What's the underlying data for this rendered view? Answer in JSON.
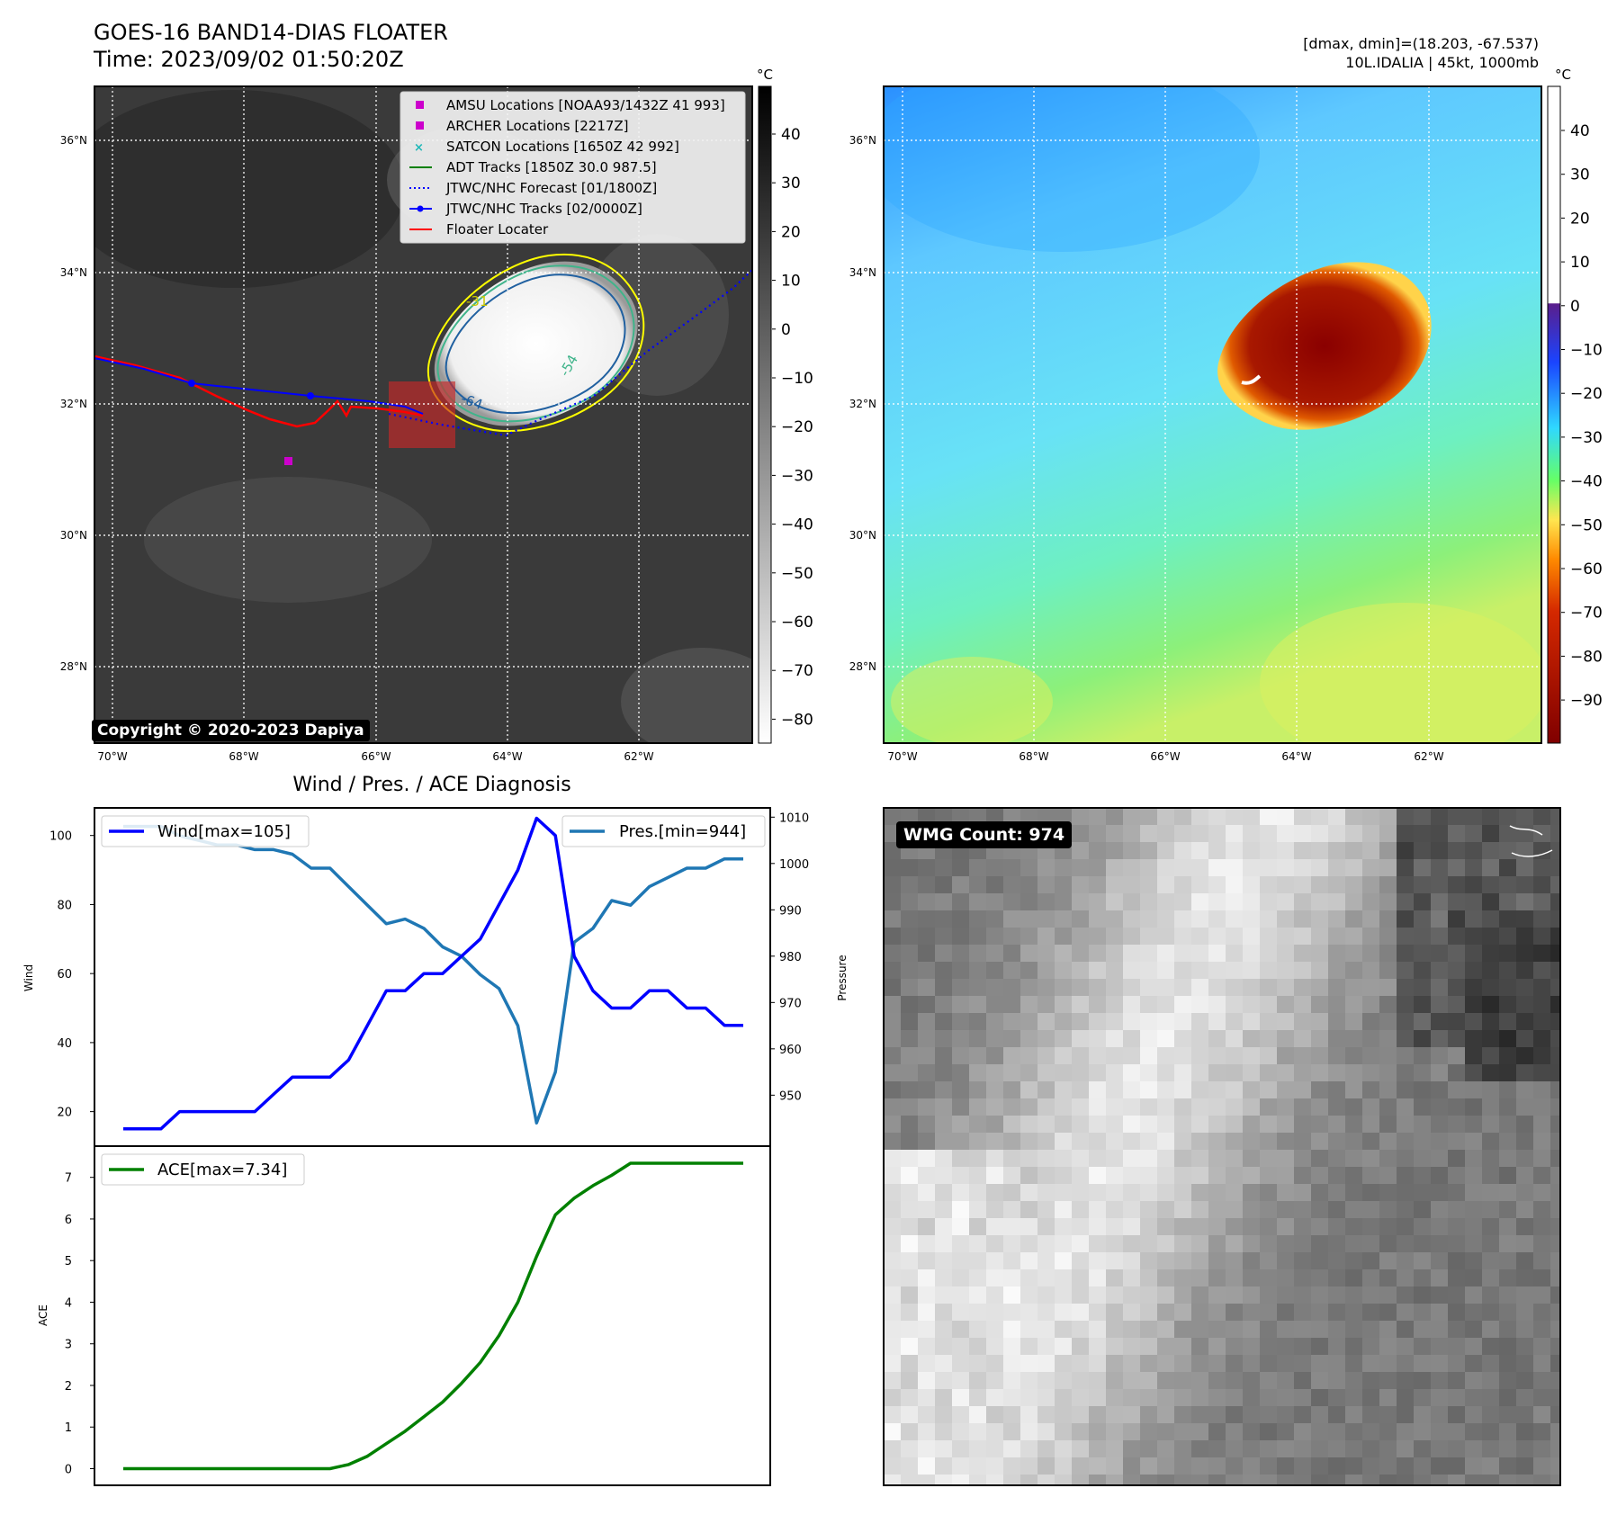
{
  "header": {
    "title": "GOES-16 BAND14-DIAS FLOATER",
    "time": "Time: 2023/09/02 01:50:20Z",
    "dmax_dmin": "[dmax, dmin]=(18.203, -67.537)",
    "storm_info": "10L.IDALIA | 45kt, 1000mb"
  },
  "map_axes": {
    "lat_labels": [
      "36°N",
      "34°N",
      "32°N",
      "30°N",
      "28°N"
    ],
    "lon_labels": [
      "70°W",
      "68°W",
      "66°W",
      "64°W",
      "62°W"
    ]
  },
  "ir_panel": {
    "colorbar_unit": "°C",
    "colorbar_ticks": [
      "40",
      "30",
      "20",
      "10",
      "0",
      "−10",
      "−20",
      "−30",
      "−40",
      "−50",
      "−60",
      "−70",
      "−80"
    ],
    "contour_labels": [
      "-31",
      "-54",
      "-64"
    ],
    "copyright": "Copyright © 2020-2023 Dapiya",
    "legend": [
      {
        "label": "AMSU Locations [NOAA93/1432Z 41 993]",
        "color": "#cc00cc",
        "marker": "square"
      },
      {
        "label": "ARCHER Locations [2217Z]",
        "color": "#cc00cc",
        "marker": "square"
      },
      {
        "label": "SATCON Locations [1650Z 42 992]",
        "color": "#1fb8b8",
        "marker": "x"
      },
      {
        "label": "ADT Tracks [1850Z 30.0 987.5]",
        "color": "#008000",
        "marker": "line"
      },
      {
        "label": "JTWC/NHC Forecast [01/1800Z]",
        "color": "#0000ff",
        "marker": "dotted"
      },
      {
        "label": "JTWC/NHC Tracks [02/0000Z]",
        "color": "#0000ff",
        "marker": "line-dot"
      },
      {
        "label": "Floater Locater",
        "color": "#ff0000",
        "marker": "line"
      }
    ]
  },
  "color_panel": {
    "colorbar_unit": "°C",
    "colorbar_ticks": [
      "40",
      "30",
      "20",
      "10",
      "0",
      "−10",
      "−20",
      "−30",
      "−40",
      "−50",
      "−60",
      "−70",
      "−80",
      "−90"
    ]
  },
  "wmg_panel": {
    "count_label": "WMG Count: 974"
  },
  "diag_panel": {
    "title": "Wind / Pres. / ACE Diagnosis",
    "wind_ylabel": "Wind",
    "pres_ylabel": "Pressure",
    "ace_ylabel": "ACE",
    "wind_legend": "Wind[max=105]",
    "pres_legend": "Pres.[min=944]",
    "ace_legend": "ACE[max=7.34]"
  },
  "chart_data": [
    {
      "type": "line",
      "title": "Wind / Pres. / ACE Diagnosis",
      "ylabel": "Wind",
      "ylim": [
        10,
        108
      ],
      "yticks": [
        20,
        40,
        60,
        80,
        100
      ],
      "series": [
        {
          "name": "Wind[max=105]",
          "color": "#0000ff",
          "values": [
            15,
            15,
            15,
            20,
            20,
            20,
            20,
            20,
            25,
            30,
            30,
            30,
            35,
            45,
            55,
            55,
            60,
            60,
            65,
            70,
            80,
            90,
            105,
            100,
            65,
            55,
            50,
            50,
            55,
            55,
            50,
            50,
            45,
            45
          ]
        }
      ]
    },
    {
      "type": "line",
      "ylabel": "Pressure",
      "ylim": [
        939,
        1012
      ],
      "yticks": [
        950,
        960,
        970,
        980,
        990,
        1000,
        1010
      ],
      "series": [
        {
          "name": "Pres.[min=944]",
          "color": "#1f77b4",
          "values": [
            1008,
            1008,
            1008,
            1006,
            1005,
            1004,
            1004,
            1003,
            1003,
            1002,
            999,
            999,
            995,
            991,
            987,
            988,
            986,
            982,
            980,
            976,
            973,
            965,
            944,
            955,
            983,
            986,
            992,
            991,
            995,
            997,
            999,
            999,
            1001,
            1001
          ]
        }
      ]
    },
    {
      "type": "line",
      "ylabel": "ACE",
      "ylim": [
        -0.4,
        7.75
      ],
      "yticks": [
        0,
        1,
        2,
        3,
        4,
        5,
        6,
        7
      ],
      "series": [
        {
          "name": "ACE[max=7.34]",
          "color": "#008000",
          "values": [
            0,
            0,
            0,
            0,
            0,
            0,
            0,
            0,
            0,
            0,
            0,
            0,
            0.1,
            0.3,
            0.6,
            0.9,
            1.25,
            1.6,
            2.05,
            2.55,
            3.2,
            4.0,
            5.1,
            6.1,
            6.5,
            6.8,
            7.05,
            7.34,
            7.34,
            7.34,
            7.34,
            7.34,
            7.34,
            7.34
          ]
        }
      ]
    }
  ]
}
